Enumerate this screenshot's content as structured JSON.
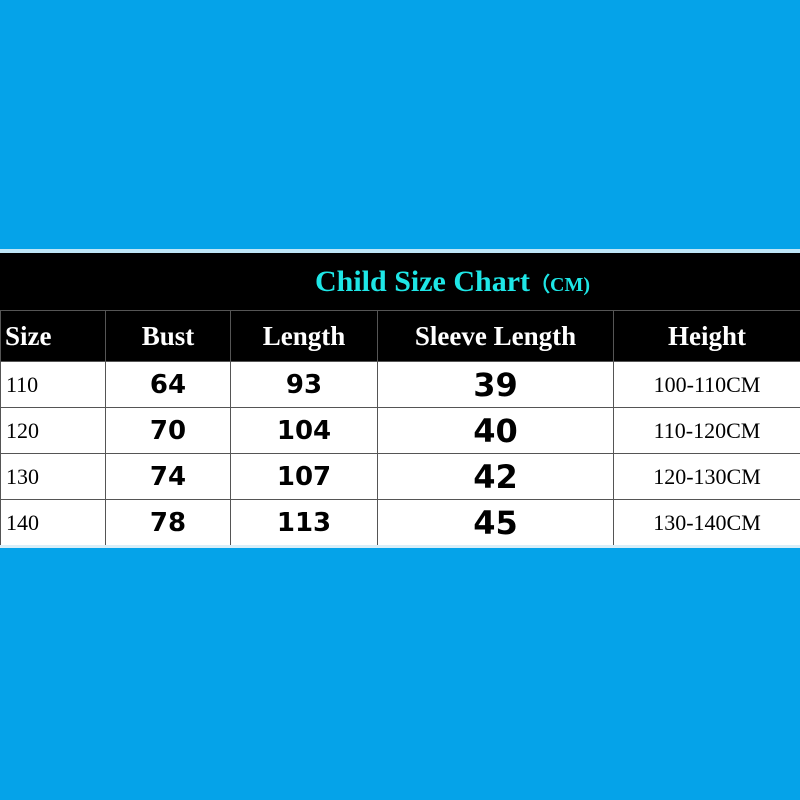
{
  "title": {
    "main": "Child Size Chart",
    "unit": "（CM)"
  },
  "headers": [
    "Size",
    "Bust",
    "Length",
    "Sleeve Length",
    "Height"
  ],
  "rows": [
    [
      "110",
      "64",
      "93",
      "39",
      "100-110CM"
    ],
    [
      "120",
      "70",
      "104",
      "40",
      "110-120CM"
    ],
    [
      "130",
      "74",
      "107",
      "42",
      "120-130CM"
    ],
    [
      "140",
      "78",
      "113",
      "45",
      "130-140CM"
    ]
  ],
  "colors": {
    "background": "#05a3e9",
    "title": "#1ee6e6",
    "header_bg": "#000000"
  }
}
